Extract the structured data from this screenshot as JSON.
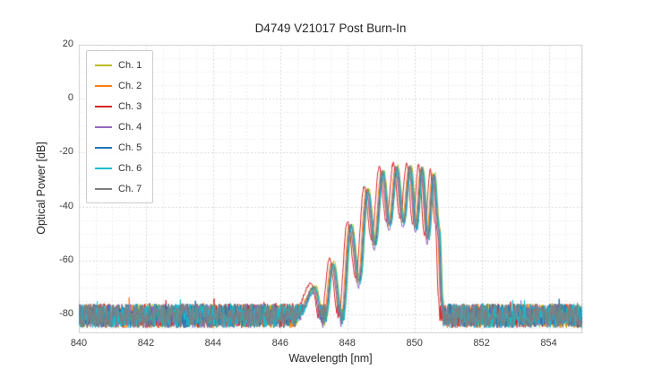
{
  "chart_data": {
    "type": "line",
    "title": "D4749 V21017 Post Burn-In",
    "xlabel": "Wavelength [nm]",
    "ylabel": "Optical Power [dB]",
    "xlim": [
      840,
      855
    ],
    "ylim": [
      -87,
      20
    ],
    "xticks": [
      840,
      842,
      844,
      846,
      848,
      850,
      852,
      854
    ],
    "yticks": [
      20,
      0,
      -20,
      -40,
      -60,
      -80
    ],
    "grid": true,
    "minor_grid": true,
    "legend_position": "upper left",
    "background": "#ffffff",
    "grid_major_color": "#d9d9d9",
    "grid_minor_color": "#ededed",
    "frame_color": "#cfcfcf",
    "noise_floor": -80.5,
    "noise_amp": 4.5,
    "envelope": [
      [
        846.3,
        -95
      ],
      [
        846.5,
        -81
      ],
      [
        847.0,
        -70
      ],
      [
        847.28,
        -85
      ],
      [
        847.55,
        -61
      ],
      [
        847.82,
        -83
      ],
      [
        848.08,
        -47
      ],
      [
        848.33,
        -68
      ],
      [
        848.58,
        -34
      ],
      [
        848.8,
        -54
      ],
      [
        849.03,
        -27
      ],
      [
        849.24,
        -47
      ],
      [
        849.45,
        -25.5
      ],
      [
        849.65,
        -46
      ],
      [
        849.85,
        -25.5
      ],
      [
        850.03,
        -48
      ],
      [
        850.2,
        -26
      ],
      [
        850.38,
        -52
      ],
      [
        850.55,
        -28
      ],
      [
        850.7,
        -48
      ],
      [
        850.8,
        -75
      ],
      [
        850.86,
        -95
      ]
    ],
    "series": [
      {
        "name": "Ch. 1",
        "color": "#bcbd22",
        "x_offset": 0.06,
        "y_offset": 0.5,
        "seed": 101
      },
      {
        "name": "Ch. 2",
        "color": "#ff7f0e",
        "x_offset": -0.02,
        "y_offset": 0.0,
        "seed": 102
      },
      {
        "name": "Ch. 3",
        "color": "#d62728",
        "x_offset": -0.08,
        "y_offset": 1.5,
        "seed": 103
      },
      {
        "name": "Ch. 4",
        "color": "#9467bd",
        "x_offset": 0.0,
        "y_offset": -2.0,
        "seed": 104
      },
      {
        "name": "Ch. 5",
        "color": "#1f77b4",
        "x_offset": 0.03,
        "y_offset": 0.0,
        "seed": 105
      },
      {
        "name": "Ch. 6",
        "color": "#17becf",
        "x_offset": 0.05,
        "y_offset": -0.5,
        "seed": 106
      },
      {
        "name": "Ch. 7",
        "color": "#7f7f7f",
        "x_offset": 0.01,
        "y_offset": 0.2,
        "seed": 107
      }
    ]
  }
}
